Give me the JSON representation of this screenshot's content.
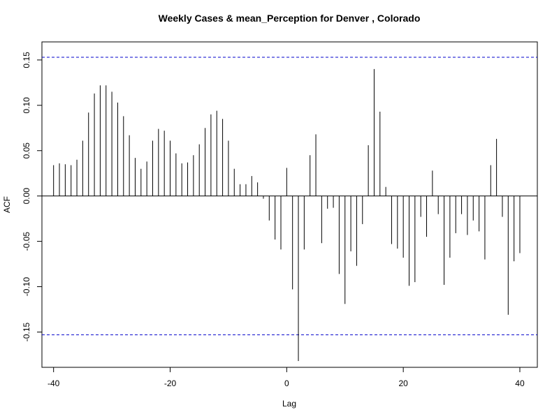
{
  "chart_data": {
    "type": "bar",
    "title": "Weekly Cases & mean_Perception for Denver , Colorado",
    "xlabel": "Lag",
    "ylabel": "ACF",
    "xlim": [
      -42,
      43
    ],
    "ylim": [
      -0.182,
      0.163
    ],
    "x_ticks": [
      -40,
      -20,
      0,
      20,
      40
    ],
    "y_ticks": [
      -0.15,
      -0.1,
      -0.05,
      0.0,
      0.05,
      0.1,
      0.15
    ],
    "y_tick_labels": [
      "-0.15",
      "-0.10",
      "-0.05",
      "0.00",
      "0.05",
      "0.10",
      "0.15"
    ],
    "confidence_bound": 0.153,
    "confidence_color": "#0000cc",
    "grid": false,
    "x": [
      -40,
      -39,
      -38,
      -37,
      -36,
      -35,
      -34,
      -33,
      -32,
      -31,
      -30,
      -29,
      -28,
      -27,
      -26,
      -25,
      -24,
      -23,
      -22,
      -21,
      -20,
      -19,
      -18,
      -17,
      -16,
      -15,
      -14,
      -13,
      -12,
      -11,
      -10,
      -9,
      -8,
      -7,
      -6,
      -5,
      -4,
      -3,
      -2,
      -1,
      0,
      1,
      2,
      3,
      4,
      5,
      6,
      7,
      8,
      9,
      10,
      11,
      12,
      13,
      14,
      15,
      16,
      17,
      18,
      19,
      20,
      21,
      22,
      23,
      24,
      25,
      26,
      27,
      28,
      29,
      30,
      31,
      32,
      33,
      34,
      35,
      36,
      37,
      38,
      39,
      40
    ],
    "values": [
      0.034,
      0.036,
      0.035,
      0.034,
      0.04,
      0.061,
      0.092,
      0.113,
      0.122,
      0.122,
      0.115,
      0.103,
      0.088,
      0.067,
      0.042,
      0.03,
      0.038,
      0.061,
      0.074,
      0.072,
      0.061,
      0.047,
      0.036,
      0.037,
      0.045,
      0.057,
      0.075,
      0.09,
      0.094,
      0.085,
      0.061,
      0.03,
      0.013,
      0.013,
      0.022,
      0.015,
      -0.003,
      -0.027,
      -0.048,
      -0.059,
      0.031,
      -0.103,
      -0.182,
      -0.059,
      0.045,
      0.068,
      -0.052,
      -0.014,
      -0.013,
      -0.086,
      -0.119,
      -0.061,
      -0.077,
      -0.031,
      0.056,
      0.14,
      0.093,
      0.01,
      -0.053,
      -0.058,
      -0.068,
      -0.099,
      -0.095,
      -0.023,
      -0.045,
      0.028,
      -0.02,
      -0.098,
      -0.068,
      -0.041,
      -0.02,
      -0.043,
      -0.027,
      -0.039,
      -0.07,
      0.034,
      0.063,
      -0.023,
      -0.131,
      -0.072,
      -0.063
    ]
  }
}
